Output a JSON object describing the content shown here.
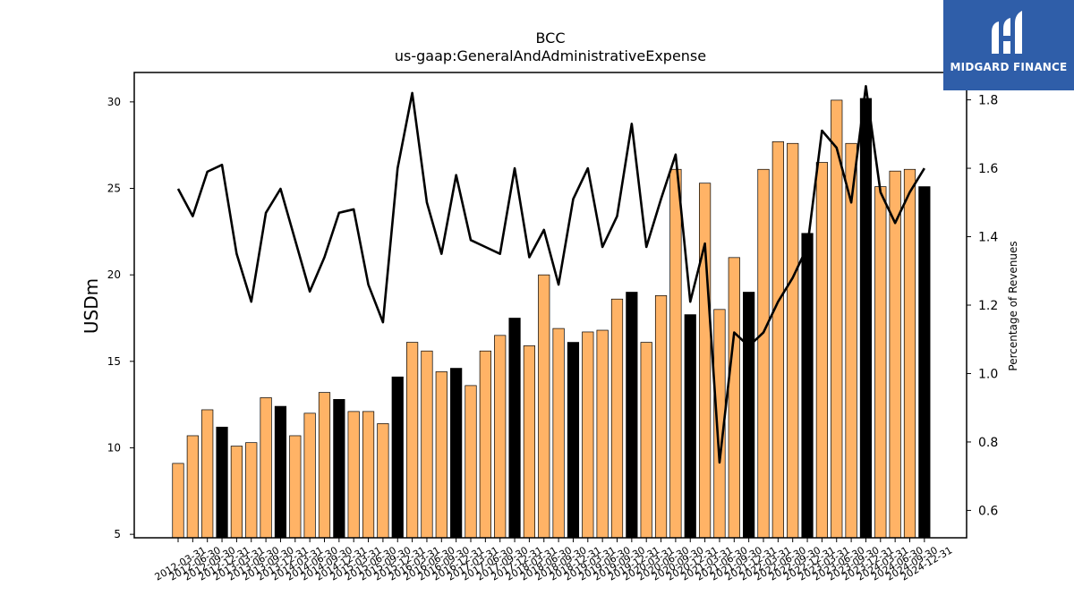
{
  "chart_data": {
    "type": "bar",
    "title": "BCC",
    "subtitle": "us-gaap:GeneralAndAdministrativeExpense",
    "ylabel": "USDm",
    "y2label": "Percentage of Revenues",
    "ylim": [
      4.8,
      31.7
    ],
    "y2lim": [
      0.52,
      1.88
    ],
    "yticks": [
      5,
      10,
      15,
      20,
      25,
      30
    ],
    "y2ticks": [
      0.6,
      0.8,
      1.0,
      1.2,
      1.4,
      1.6,
      1.8
    ],
    "categories": [
      "2012-03-31",
      "2012-06-30",
      "2012-09-30",
      "2012-12-31",
      "2013-03-31",
      "2013-06-30",
      "2013-09-30",
      "2013-12-31",
      "2014-03-31",
      "2014-06-30",
      "2014-09-30",
      "2014-12-31",
      "2015-03-31",
      "2015-06-30",
      "2015-09-30",
      "2015-12-31",
      "2016-03-31",
      "2016-06-30",
      "2016-09-30",
      "2016-12-31",
      "2017-03-31",
      "2017-06-30",
      "2017-09-30",
      "2017-12-31",
      "2018-03-31",
      "2018-06-30",
      "2018-09-30",
      "2018-12-31",
      "2019-03-31",
      "2019-06-30",
      "2019-09-30",
      "2019-12-31",
      "2020-03-31",
      "2020-06-30",
      "2020-09-30",
      "2020-12-31",
      "2021-03-31",
      "2021-06-30",
      "2021-09-30",
      "2021-12-31",
      "2022-03-31",
      "2022-06-30",
      "2022-09-30",
      "2022-12-31",
      "2023-03-31",
      "2023-06-30",
      "2023-09-30",
      "2023-12-31",
      "2024-03-31",
      "2024-06-30",
      "2024-09-30",
      "2024-12-31"
    ],
    "series": [
      {
        "type": "bar",
        "values": [
          9.1,
          10.7,
          12.2,
          11.2,
          10.1,
          10.3,
          12.9,
          12.4,
          10.7,
          12.0,
          13.2,
          12.8,
          12.1,
          12.1,
          11.4,
          14.1,
          16.1,
          15.6,
          14.4,
          14.6,
          13.6,
          15.6,
          16.5,
          17.5,
          15.9,
          20.0,
          16.9,
          16.1,
          16.7,
          16.8,
          18.6,
          19.0,
          16.1,
          18.8,
          26.1,
          17.7,
          25.3,
          18.0,
          21.0,
          19.0,
          26.1,
          27.7,
          27.6,
          22.4,
          26.5,
          30.1,
          27.6,
          30.2,
          25.1,
          26.0,
          26.1,
          25.1
        ],
        "color_regular": "#ffb366",
        "color_q4": "#000000"
      },
      {
        "type": "line",
        "axis": "right",
        "values": [
          1.54,
          1.46,
          1.59,
          1.61,
          1.35,
          1.21,
          1.47,
          1.54,
          1.39,
          1.24,
          1.34,
          1.47,
          1.48,
          1.26,
          1.15,
          1.6,
          1.82,
          1.5,
          1.35,
          1.58,
          1.39,
          1.37,
          1.35,
          1.6,
          1.34,
          1.42,
          1.26,
          1.51,
          1.6,
          1.37,
          1.46,
          1.73,
          1.37,
          1.51,
          1.64,
          1.21,
          1.38,
          0.74,
          1.12,
          1.08,
          1.12,
          1.21,
          1.28,
          1.37,
          1.71,
          1.66,
          1.5,
          1.84,
          1.53,
          1.44,
          1.53,
          1.6
        ],
        "color": "#000000"
      }
    ]
  },
  "logo": {
    "text": "MIDGARD FINANCE",
    "color": "#2f5ea9"
  }
}
